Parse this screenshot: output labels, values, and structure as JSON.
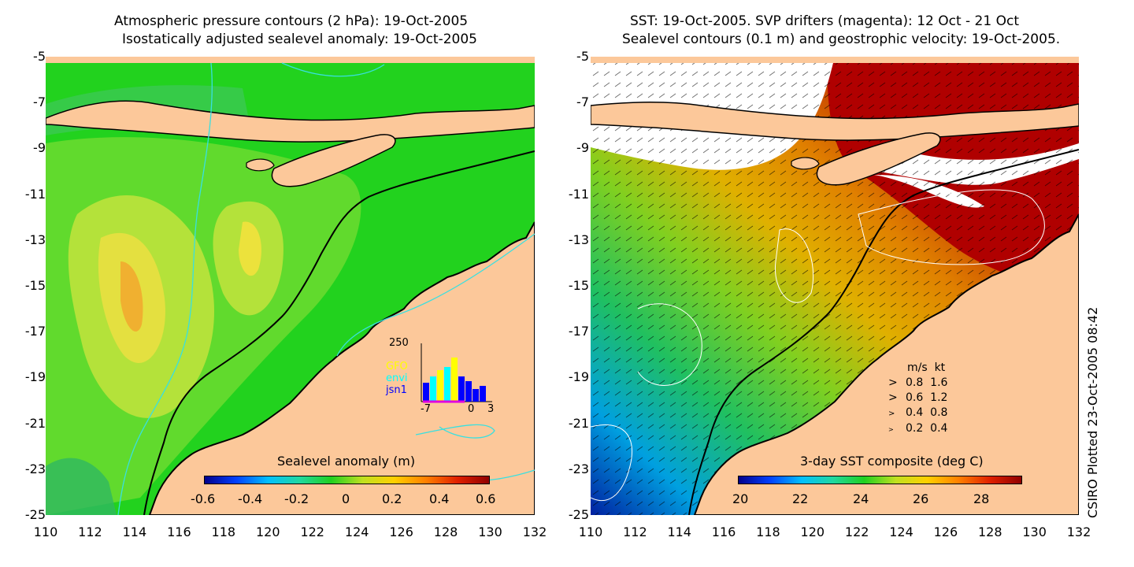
{
  "left_panel": {
    "title_line1": "Atmospheric pressure contours (2 hPa): 19-Oct-2005",
    "title_line2": "Isostatically adjusted sealevel anomaly: 19-Oct-2005",
    "colorbar_label": "Sealevel anomaly (m)",
    "colorbar_ticks": [
      "-0.6",
      "-0.4",
      "-0.2",
      "0",
      "0.2",
      "0.4",
      "0.6"
    ],
    "inset": {
      "ymax_label": "250",
      "x_ticks": [
        "-7",
        "0",
        "3"
      ],
      "legend": [
        {
          "name": "GFO",
          "color": "#ffff00"
        },
        {
          "name": "envi",
          "color": "#00ffff"
        },
        {
          "name": "jsn1",
          "color": "#0000ff"
        }
      ]
    }
  },
  "right_panel": {
    "title_line1": "SST: 19-Oct-2005. SVP drifters (magenta): 12 Oct - 21 Oct",
    "title_line2": "Sealevel contours (0.1 m) and geostrophic velocity: 19-Oct-2005.",
    "colorbar_label": "3-day SST composite (deg C)",
    "colorbar_ticks": [
      "20",
      "22",
      "24",
      "26",
      "28"
    ],
    "speed_legend": {
      "header_ms": "m/s",
      "header_kt": "kt",
      "rows": [
        {
          "ms": "0.8",
          "kt": "1.6"
        },
        {
          "ms": "0.6",
          "kt": "1.2"
        },
        {
          "ms": "0.4",
          "kt": "0.8"
        },
        {
          "ms": "0.2",
          "kt": "0.4"
        }
      ]
    }
  },
  "axes": {
    "y_ticks": [
      "-5",
      "-7",
      "-9",
      "-11",
      "-13",
      "-15",
      "-17",
      "-19",
      "-21",
      "-23",
      "-25"
    ],
    "x_ticks": [
      "110",
      "112",
      "114",
      "116",
      "118",
      "120",
      "122",
      "124",
      "126",
      "128",
      "130",
      "132"
    ]
  },
  "credit": "CSIRO Plotted 23-Oct-2005 08:42",
  "colors": {
    "land": "#fcc89a",
    "sealevel_base": "#22d21e",
    "sst_warm": "#b00000",
    "coastline": "#000000",
    "contour_cyan": "#38e0e0"
  }
}
